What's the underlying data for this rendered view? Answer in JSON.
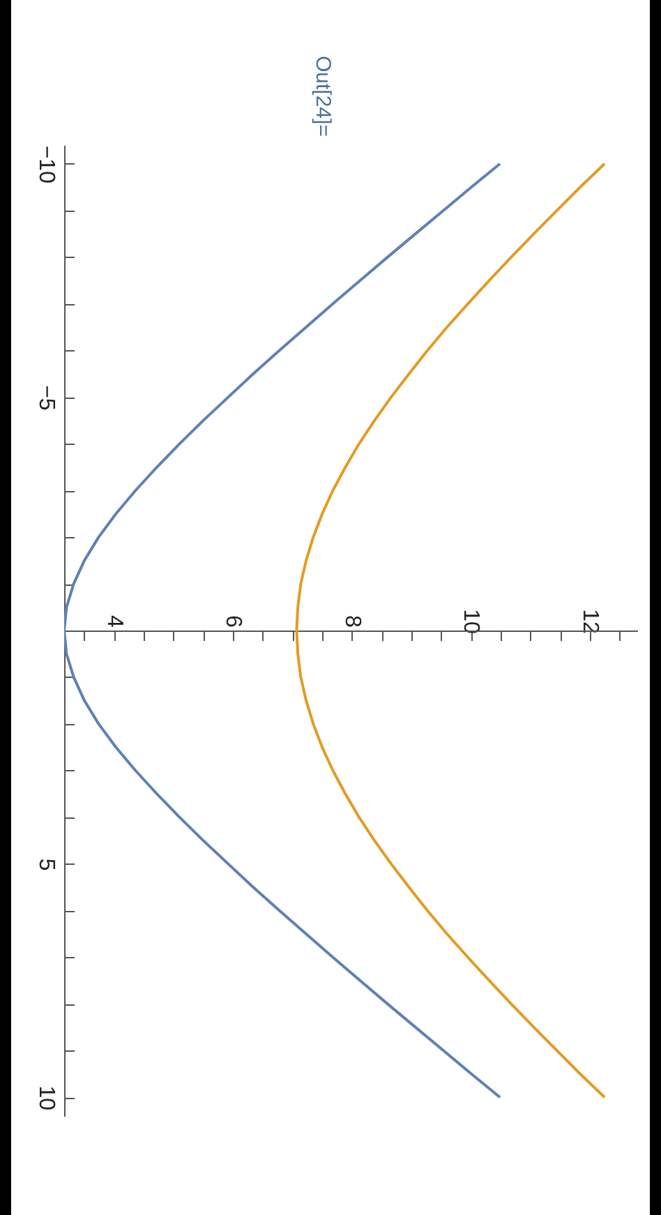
{
  "chart_data": {
    "type": "line",
    "annotations": [
      "Out[24]="
    ],
    "series": [
      {
        "color": "#5e81b5",
        "x": [
          10.49,
          10.01,
          9.54,
          9.07,
          8.6,
          8.14,
          7.68,
          7.23,
          6.78,
          6.34,
          5.92,
          5.5,
          5.1,
          4.72,
          4.36,
          4.03,
          3.74,
          3.5,
          3.32,
          3.2,
          3.16,
          3.2,
          3.32,
          3.5,
          3.74,
          4.03,
          4.36,
          4.72,
          5.1,
          5.5,
          5.92,
          6.34,
          6.78,
          7.23,
          7.68,
          8.14,
          8.6,
          9.07,
          9.54,
          10.01,
          10.49
        ],
        "values": [
          -10,
          -9.5,
          -9,
          -8.5,
          -8,
          -7.5,
          -7,
          -6.5,
          -6,
          -5.5,
          -5,
          -4.5,
          -4,
          -3.5,
          -3,
          -2.5,
          -2,
          -1.5,
          -1,
          -0.5,
          0,
          0.5,
          1,
          1.5,
          2,
          2.5,
          3,
          3.5,
          4,
          4.5,
          5,
          5.5,
          6,
          6.5,
          7,
          7.5,
          8,
          8.5,
          9,
          9.5,
          10
        ]
      },
      {
        "color": "#e19c24",
        "x": [
          12.25,
          11.84,
          11.45,
          11.06,
          10.68,
          10.31,
          9.95,
          9.6,
          9.27,
          8.96,
          8.66,
          8.38,
          8.12,
          7.89,
          7.68,
          7.5,
          7.35,
          7.23,
          7.14,
          7.09,
          7.07,
          7.09,
          7.14,
          7.23,
          7.35,
          7.5,
          7.68,
          7.89,
          8.12,
          8.38,
          8.66,
          8.96,
          9.27,
          9.6,
          9.95,
          10.31,
          10.68,
          11.06,
          11.45,
          11.84,
          12.25
        ],
        "values": [
          -10,
          -9.5,
          -9,
          -8.5,
          -8,
          -7.5,
          -7,
          -6.5,
          -6,
          -5.5,
          -5,
          -4.5,
          -4,
          -3.5,
          -3,
          -2.5,
          -2,
          -1.5,
          -1,
          -0.5,
          0,
          0.5,
          1,
          1.5,
          2,
          2.5,
          3,
          3.5,
          4,
          4.5,
          5,
          5.5,
          6,
          6.5,
          7,
          7.5,
          8,
          8.5,
          9,
          9.5,
          10
        ]
      }
    ],
    "xlim": [
      3.16,
      12.8
    ],
    "xticks": [
      {
        "value": 3.5,
        "label": null
      },
      4,
      {
        "value": 4.5,
        "label": null
      },
      {
        "value": 5,
        "label": null
      },
      {
        "value": 5.5,
        "label": null
      },
      6,
      {
        "value": 6.5,
        "label": null
      },
      {
        "value": 7,
        "label": null
      },
      {
        "value": 7.5,
        "label": null
      },
      8,
      {
        "value": 8.5,
        "label": null
      },
      {
        "value": 9,
        "label": null
      },
      {
        "value": 9.5,
        "label": null
      },
      10,
      {
        "value": 10.5,
        "label": null
      },
      {
        "value": 11,
        "label": null
      },
      {
        "value": 11.5,
        "label": null
      },
      12,
      {
        "value": 12.5,
        "label": null
      }
    ],
    "ylim": [
      10.4,
      -10.4
    ],
    "yticks": [
      {
        "value": -10,
        "label": "−10"
      },
      {
        "value": -9,
        "label": null
      },
      {
        "value": -8,
        "label": null
      },
      {
        "value": -7,
        "label": null
      },
      {
        "value": -6,
        "label": null
      },
      {
        "value": -5,
        "label": "−5"
      },
      {
        "value": -4,
        "label": null
      },
      {
        "value": -3,
        "label": null
      },
      {
        "value": -2,
        "label": null
      },
      {
        "value": -1,
        "label": null
      },
      {
        "value": 1,
        "label": null
      },
      {
        "value": 2,
        "label": null
      },
      {
        "value": 3,
        "label": null
      },
      {
        "value": 4,
        "label": null
      },
      5,
      {
        "value": 6,
        "label": null
      },
      {
        "value": 7,
        "label": null
      },
      {
        "value": 8,
        "label": null
      },
      {
        "value": 9,
        "label": null
      },
      10
    ],
    "grid": false,
    "marker": "none",
    "line_style": "solid"
  }
}
